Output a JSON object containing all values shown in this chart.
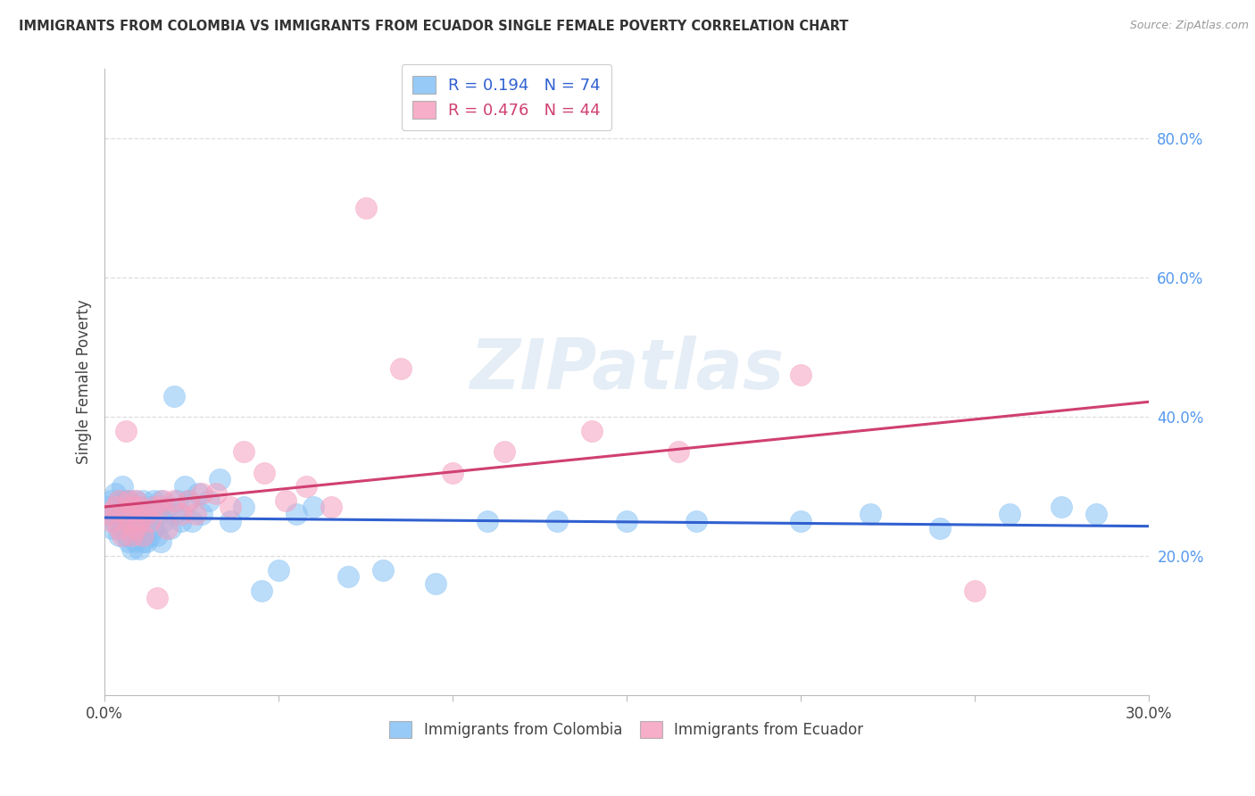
{
  "title": "IMMIGRANTS FROM COLOMBIA VS IMMIGRANTS FROM ECUADOR SINGLE FEMALE POVERTY CORRELATION CHART",
  "source": "Source: ZipAtlas.com",
  "ylabel": "Single Female Poverty",
  "xlim": [
    0.0,
    0.3
  ],
  "ylim": [
    0.0,
    0.9
  ],
  "xticks": [
    0.0,
    0.05,
    0.1,
    0.15,
    0.2,
    0.25,
    0.3
  ],
  "xtick_labels": [
    "0.0%",
    "",
    "",
    "",
    "",
    "",
    "30.0%"
  ],
  "ytick_positions": [
    0.2,
    0.4,
    0.6,
    0.8
  ],
  "ytick_labels": [
    "20.0%",
    "40.0%",
    "60.0%",
    "80.0%"
  ],
  "colombia_color": "#85C1F5",
  "ecuador_color": "#F5A0C0",
  "colombia_R": 0.194,
  "colombia_N": 74,
  "ecuador_R": 0.476,
  "ecuador_N": 44,
  "colombia_line_color": "#3060D0",
  "ecuador_line_color": "#D04070",
  "colombia_x": [
    0.001,
    0.002,
    0.002,
    0.003,
    0.003,
    0.003,
    0.004,
    0.004,
    0.004,
    0.005,
    0.005,
    0.005,
    0.005,
    0.006,
    0.006,
    0.006,
    0.007,
    0.007,
    0.007,
    0.008,
    0.008,
    0.008,
    0.009,
    0.009,
    0.009,
    0.01,
    0.01,
    0.01,
    0.011,
    0.011,
    0.011,
    0.012,
    0.012,
    0.013,
    0.013,
    0.014,
    0.014,
    0.015,
    0.015,
    0.016,
    0.016,
    0.017,
    0.018,
    0.019,
    0.02,
    0.02,
    0.021,
    0.022,
    0.023,
    0.024,
    0.025,
    0.027,
    0.028,
    0.03,
    0.033,
    0.036,
    0.04,
    0.045,
    0.05,
    0.055,
    0.06,
    0.07,
    0.08,
    0.095,
    0.11,
    0.13,
    0.15,
    0.17,
    0.2,
    0.22,
    0.24,
    0.26,
    0.275,
    0.285
  ],
  "colombia_y": [
    0.27,
    0.24,
    0.28,
    0.25,
    0.26,
    0.29,
    0.23,
    0.26,
    0.28,
    0.24,
    0.25,
    0.27,
    0.3,
    0.23,
    0.26,
    0.28,
    0.22,
    0.25,
    0.28,
    0.21,
    0.24,
    0.27,
    0.22,
    0.25,
    0.28,
    0.21,
    0.24,
    0.27,
    0.22,
    0.25,
    0.28,
    0.22,
    0.26,
    0.23,
    0.27,
    0.24,
    0.28,
    0.23,
    0.26,
    0.22,
    0.28,
    0.25,
    0.27,
    0.24,
    0.43,
    0.26,
    0.28,
    0.25,
    0.3,
    0.28,
    0.25,
    0.29,
    0.26,
    0.28,
    0.31,
    0.25,
    0.27,
    0.15,
    0.18,
    0.26,
    0.27,
    0.17,
    0.18,
    0.16,
    0.25,
    0.25,
    0.25,
    0.25,
    0.25,
    0.26,
    0.24,
    0.26,
    0.27,
    0.26
  ],
  "ecuador_x": [
    0.001,
    0.002,
    0.003,
    0.004,
    0.004,
    0.005,
    0.006,
    0.006,
    0.007,
    0.007,
    0.008,
    0.008,
    0.009,
    0.009,
    0.01,
    0.01,
    0.011,
    0.012,
    0.013,
    0.014,
    0.015,
    0.016,
    0.017,
    0.018,
    0.02,
    0.022,
    0.024,
    0.026,
    0.028,
    0.032,
    0.036,
    0.04,
    0.046,
    0.052,
    0.058,
    0.065,
    0.075,
    0.085,
    0.1,
    0.115,
    0.14,
    0.165,
    0.2,
    0.25
  ],
  "ecuador_y": [
    0.26,
    0.25,
    0.27,
    0.24,
    0.28,
    0.23,
    0.38,
    0.26,
    0.25,
    0.28,
    0.23,
    0.27,
    0.24,
    0.28,
    0.25,
    0.27,
    0.23,
    0.26,
    0.25,
    0.27,
    0.14,
    0.27,
    0.28,
    0.24,
    0.28,
    0.26,
    0.28,
    0.26,
    0.29,
    0.29,
    0.27,
    0.35,
    0.32,
    0.28,
    0.3,
    0.27,
    0.7,
    0.47,
    0.32,
    0.35,
    0.38,
    0.35,
    0.46,
    0.15
  ]
}
